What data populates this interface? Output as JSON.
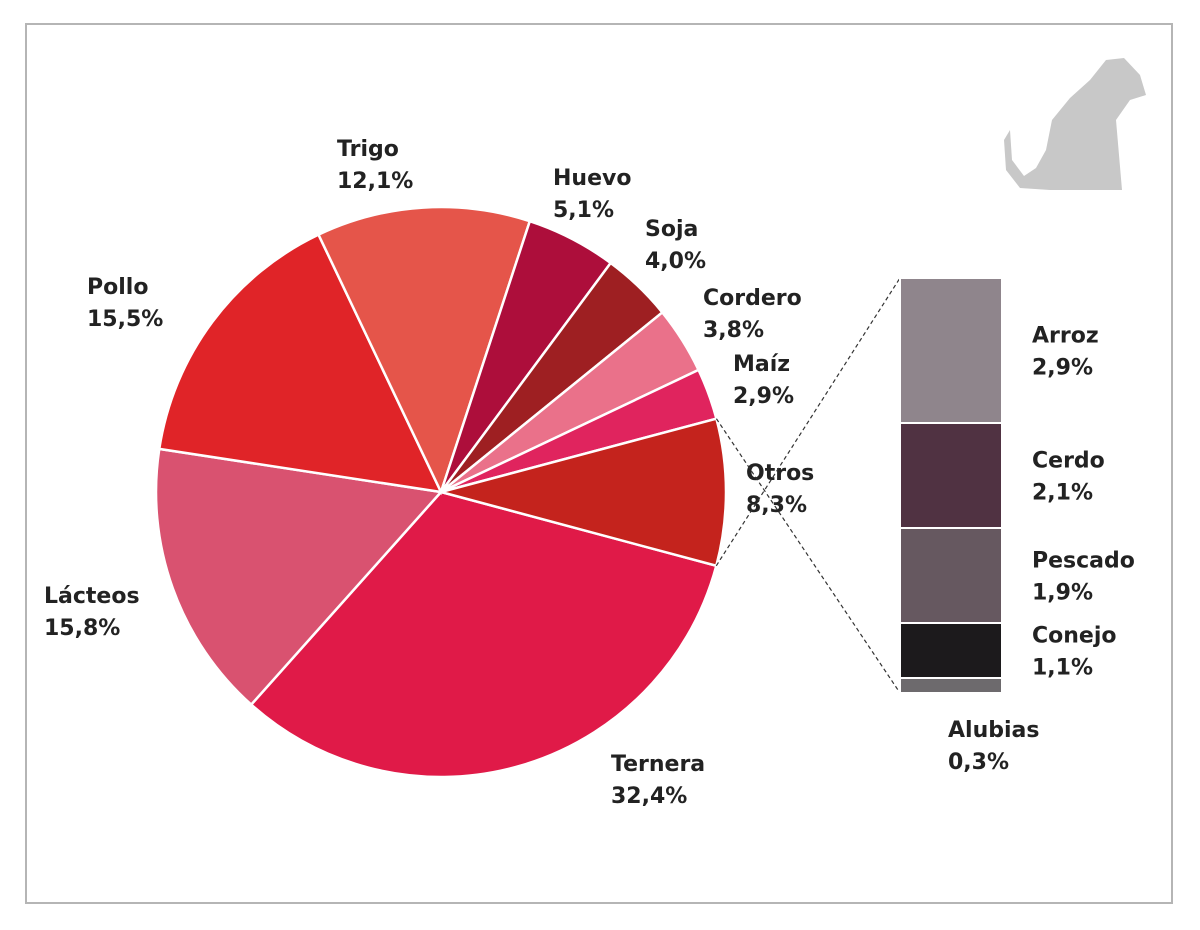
{
  "chart_data": [
    {
      "type": "pie",
      "categories": [
        "Ternera",
        "Lácteos",
        "Pollo",
        "Trigo",
        "Huevo",
        "Soja",
        "Cordero",
        "Maíz",
        "Otros"
      ],
      "values": [
        32.4,
        15.8,
        15.5,
        12.1,
        5.1,
        4.0,
        3.8,
        2.9,
        8.3
      ],
      "value_labels": [
        "32,4%",
        "15,8%",
        "15,5%",
        "12,1%",
        "5,1%",
        "4,0%",
        "3,8%",
        "2,9%",
        "8,3%"
      ],
      "colors": [
        "#e01a48",
        "#d95270",
        "#e02428",
        "#e5554a",
        "#ad0e3b",
        "#9e1f22",
        "#ea718a",
        "#e0245e",
        "#c4231d"
      ]
    },
    {
      "type": "stacked-bar",
      "categories": [
        "Arroz",
        "Cerdo",
        "Pescado",
        "Conejo",
        "Alubias"
      ],
      "values": [
        2.9,
        2.1,
        1.9,
        1.1,
        0.3
      ],
      "value_labels": [
        "2,9%",
        "2,1%",
        "1,9%",
        "1,1%",
        "0,3%"
      ],
      "colors": [
        "#8f858c",
        "#503242",
        "#665860",
        "#1c1a1c",
        "#6d6a6d"
      ]
    }
  ]
}
